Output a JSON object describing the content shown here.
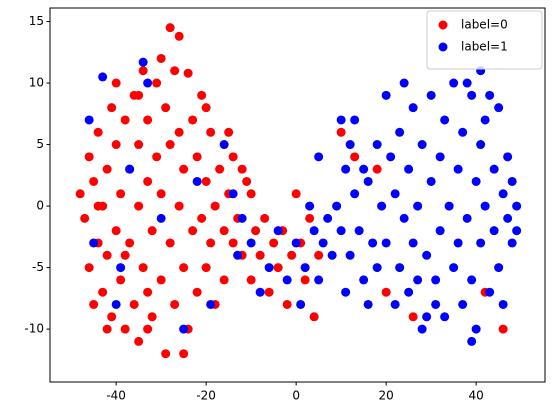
{
  "chart_data": {
    "type": "scatter",
    "xlim": [
      -54.7,
      55.3
    ],
    "ylim": [
      -14.3,
      16.1
    ],
    "xticks": [
      -40,
      -20,
      0,
      20,
      40
    ],
    "yticks": [
      -10,
      -5,
      0,
      5,
      10,
      15
    ],
    "legend": "upper right",
    "series": [
      {
        "name": "label=0",
        "color": "#ff0000",
        "x": [
          -48,
          -47,
          -46,
          -46,
          -45,
          -45,
          -44,
          -44,
          -43,
          -43,
          -42,
          -42,
          -41,
          -41,
          -40,
          -40,
          -40,
          -39,
          -39,
          -38,
          -38,
          -37,
          -37,
          -36,
          -36,
          -35,
          -35,
          -35,
          -34,
          -34,
          -33,
          -33,
          -32,
          -32,
          -31,
          -31,
          -30,
          -30,
          -29,
          -29,
          -28,
          -28,
          -28,
          -27,
          -27,
          -26,
          -26,
          -25,
          -25,
          -24,
          -24,
          -23,
          -23,
          -22,
          -22,
          -21,
          -21,
          -20,
          -20,
          -19,
          -19,
          -18,
          -18,
          -17,
          -16,
          -16,
          -15,
          -14,
          -14,
          -13,
          -12,
          -11,
          -10,
          -9,
          -8,
          -7,
          -6,
          -5,
          -4,
          -3,
          -2,
          -1,
          0,
          1,
          2,
          3,
          4,
          5,
          -15,
          -12,
          -35,
          -42,
          -38,
          -30,
          -26,
          -44,
          -33,
          -20,
          10,
          13,
          18,
          26,
          42,
          46,
          20,
          -10,
          -25,
          -33
        ],
        "y": [
          1,
          -1,
          4,
          -5,
          2,
          -8,
          6,
          -3,
          0,
          -7,
          3,
          -4,
          8,
          -9,
          5,
          -2,
          10,
          1,
          -6,
          7,
          -10,
          3,
          -3,
          9,
          -8,
          0,
          5,
          -11,
          11,
          -5,
          2,
          7,
          -2,
          -9,
          4,
          10,
          -6,
          1,
          8,
          -12,
          14.5,
          -3,
          5,
          11,
          -8,
          0,
          6,
          -5,
          3,
          10.8,
          -10,
          -2,
          7,
          4,
          -7,
          9,
          -1,
          2,
          -5,
          6,
          -3,
          0,
          -8,
          3,
          -2,
          -6,
          1,
          4,
          -3,
          -1,
          -4,
          2,
          -6,
          -2,
          -4,
          -1,
          -7,
          -3,
          -5,
          -2,
          -8,
          -4,
          1,
          -3,
          -6,
          -1,
          -9,
          -4,
          6,
          3,
          9,
          -10,
          -4,
          12,
          13.8,
          0,
          -7,
          8,
          6,
          4,
          3,
          -9,
          -7,
          -10,
          -7,
          1,
          -12,
          -10
        ]
      },
      {
        "name": "label=1",
        "color": "#0000ff",
        "x": [
          0,
          2,
          3,
          4,
          5,
          6,
          7,
          8,
          9,
          10,
          10,
          11,
          11,
          12,
          12,
          13,
          13,
          14,
          15,
          15,
          16,
          16,
          17,
          18,
          18,
          19,
          20,
          20,
          21,
          22,
          22,
          23,
          23,
          24,
          25,
          25,
          26,
          26,
          27,
          28,
          28,
          29,
          30,
          30,
          31,
          32,
          32,
          33,
          33,
          34,
          35,
          35,
          36,
          36,
          37,
          37,
          38,
          39,
          39,
          40,
          40,
          41,
          41,
          42,
          42,
          43,
          44,
          44,
          45,
          45,
          46,
          46,
          47,
          47,
          48,
          48,
          49,
          49,
          41,
          38,
          43,
          31,
          27,
          24,
          -46,
          -43,
          -34,
          -33,
          -37,
          -39,
          -40,
          -25,
          -22,
          -19,
          -16,
          -14,
          -12,
          -10,
          -8,
          -6,
          -4,
          -2,
          -13,
          -45,
          -30,
          5,
          1,
          39,
          29
        ],
        "y": [
          -3,
          -5,
          0,
          -2,
          -6,
          -3,
          -1,
          -4,
          0,
          -2,
          7,
          3,
          -7,
          5,
          -4,
          1,
          7,
          -2,
          -6,
          3,
          -8,
          2,
          -3,
          5,
          -5,
          0,
          9,
          -3,
          4,
          -8,
          1,
          6,
          -5,
          -1,
          3,
          -7,
          8,
          -3,
          0,
          5,
          -10,
          -4,
          2,
          9,
          -6,
          4,
          -2,
          7,
          -9,
          0,
          -5,
          10,
          3,
          -3,
          6,
          -8,
          -1,
          9,
          -6,
          2,
          -10,
          5,
          -3,
          0,
          7,
          -7,
          3,
          -2,
          8,
          -5,
          1,
          -8,
          4,
          -1,
          -3,
          2,
          -2,
          0,
          11,
          10,
          9,
          -8,
          -6,
          10,
          7,
          10.5,
          11.7,
          10,
          3,
          -5,
          -8,
          -10,
          2,
          -8,
          5,
          1,
          -1,
          -3,
          -7,
          -5,
          -2,
          -6,
          -4,
          -3,
          -1,
          4,
          -8,
          -11,
          -9
        ]
      }
    ]
  }
}
